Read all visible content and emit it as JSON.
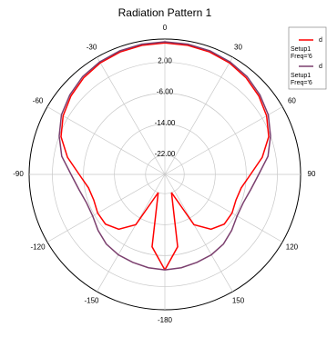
{
  "chart_data": {
    "type": "polar",
    "title": "Radiation Pattern 1",
    "x": [
      -180,
      -170,
      -160,
      -150,
      -140,
      -130,
      -120,
      -110,
      -100,
      -90,
      -80,
      -70,
      -60,
      -50,
      -40,
      -30,
      -20,
      -10,
      0,
      10,
      20,
      30,
      40,
      50,
      60,
      70,
      80,
      90,
      100,
      110,
      120,
      130,
      140,
      150,
      160,
      170,
      180
    ],
    "series": [
      {
        "name": "d",
        "setup": "Setup1",
        "freq": "Freq='6",
        "color": "#ff0000",
        "values": [
          -2.3,
          -8,
          -22,
          -12,
          -8.5,
          -7,
          -7,
          -7.5,
          -7,
          -4.9,
          -1.5,
          1.5,
          3.3,
          4.6,
          5.6,
          6.3,
          6.7,
          6.9,
          7,
          6.9,
          6.7,
          6.3,
          5.6,
          4.6,
          3.3,
          1.5,
          -1.5,
          -4.9,
          -7,
          -7.5,
          -7,
          -7,
          -8.5,
          -12,
          -22,
          -8,
          -2.3
        ]
      },
      {
        "name": "d",
        "setup": "Setup1",
        "freq": "Freq='6",
        "color": "#7b3f6e",
        "values": [
          -2.3,
          -2.5,
          -2.8,
          -3,
          -3.5,
          -4.5,
          -5.5,
          -5.5,
          -4.5,
          -2.8,
          0,
          2,
          3.8,
          5,
          6,
          6.6,
          7,
          7.2,
          7.3,
          7.2,
          7,
          6.6,
          6,
          5,
          3.8,
          2,
          0,
          -2.8,
          -4.5,
          -5.5,
          -5.5,
          -4.5,
          -3.5,
          -3,
          -2.8,
          -2.5,
          -2.3
        ]
      }
    ],
    "xticks": [
      -180,
      -150,
      -120,
      -90,
      -60,
      -30,
      0,
      30,
      60,
      90,
      120,
      150
    ],
    "rlim": [
      -27,
      8
    ],
    "rticks": [
      {
        "value": -22,
        "label": "-22.00"
      },
      {
        "value": -14,
        "label": "-14.00"
      },
      {
        "value": -6,
        "label": "-6.00"
      },
      {
        "value": 2,
        "label": "2.00"
      }
    ],
    "grid": true
  }
}
